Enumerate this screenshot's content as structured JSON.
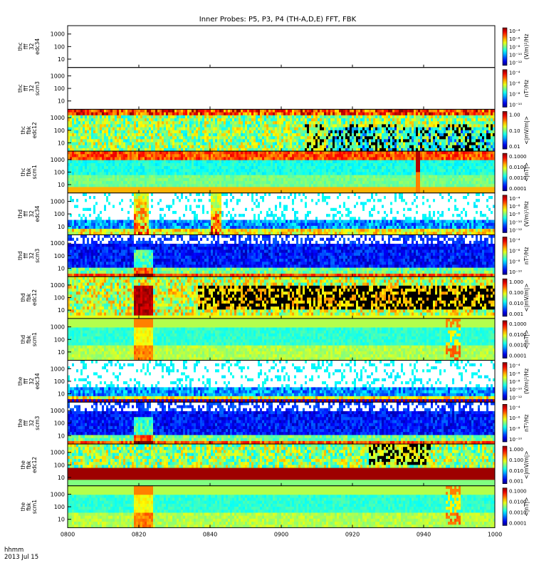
{
  "title": "Inner Probes: P5, P3, P4 (TH-A,D,E) FFT, FBK",
  "footer": {
    "format_label": "hhmm",
    "date_label": "2013 Jul 15"
  },
  "colorbar_units": {
    "ff_edc": "(V/m)²/Hz",
    "ff_scm": "nT²/Hz",
    "fbk_efi": "<|mV/m|>",
    "fbk_scm": "<|nT|>"
  },
  "chart_data": {
    "type": "heatmap",
    "title": "Inner Probes: P5, P3, P4 (TH-A,D,E) FFT, FBK",
    "x_ticks": [
      "0800",
      "0820",
      "0840",
      "0900",
      "0920",
      "0940",
      "1000"
    ],
    "x_range": [
      "08:00",
      "10:00"
    ],
    "y_scale": "log",
    "panels": [
      {
        "label": [
          "thc",
          "fff",
          "32",
          "edc34"
        ],
        "y_ticks": [
          "1000",
          "100",
          "10"
        ],
        "cbar_ticks": [
          "10⁻⁴",
          "10⁻⁶",
          "10⁻⁸",
          "10⁻¹⁰",
          "10⁻¹²"
        ],
        "units_key": "ff_edc",
        "empty": true
      },
      {
        "label": [
          "thc",
          "fff",
          "32",
          "scm3"
        ],
        "y_ticks": [
          "1000",
          "100",
          "10"
        ],
        "cbar_ticks": [
          "10⁻⁴",
          "10⁻⁶",
          "10⁻⁸",
          "10⁻¹⁰"
        ],
        "units_key": "ff_scm",
        "empty": true
      },
      {
        "label": [
          "thc",
          "fbk",
          "edc12"
        ],
        "y_ticks": [
          "1000",
          "100",
          "10"
        ],
        "cbar_ticks": [
          "1.00",
          "0.10",
          "0.01"
        ],
        "units_key": "fbk_efi",
        "pattern": "dense"
      },
      {
        "label": [
          "thc",
          "fbk",
          "scm1"
        ],
        "y_ticks": [
          "1000",
          "100",
          "10"
        ],
        "cbar_ticks": [
          "0.1000",
          "0.0100",
          "0.0010",
          "0.0001"
        ],
        "units_key": "fbk_scm",
        "pattern": "banded"
      },
      {
        "label": [
          "thd",
          "fff",
          "32",
          "edc34"
        ],
        "y_ticks": [
          "1000",
          "100",
          "10"
        ],
        "cbar_ticks": [
          "10⁻⁴",
          "10⁻⁶",
          "10⁻⁸",
          "10⁻¹⁰",
          "10⁻¹²"
        ],
        "units_key": "ff_edc",
        "pattern": "sparse"
      },
      {
        "label": [
          "thd",
          "fff",
          "32",
          "scm3"
        ],
        "y_ticks": [
          "1000",
          "100",
          "10"
        ],
        "cbar_ticks": [
          "10⁻⁴",
          "10⁻⁶",
          "10⁻⁸",
          "10⁻¹⁰"
        ],
        "units_key": "ff_scm",
        "pattern": "purple"
      },
      {
        "label": [
          "thd",
          "fbk",
          "edc12"
        ],
        "y_ticks": [
          "1000",
          "100",
          "10"
        ],
        "cbar_ticks": [
          "1.000",
          "0.100",
          "0.010",
          "0.001"
        ],
        "units_key": "fbk_efi",
        "pattern": "dark"
      },
      {
        "label": [
          "thd",
          "fbk",
          "scm1"
        ],
        "y_ticks": [
          "1000",
          "100",
          "10"
        ],
        "cbar_ticks": [
          "0.1000",
          "0.0100",
          "0.0010",
          "0.0001"
        ],
        "units_key": "fbk_scm",
        "pattern": "smooth"
      },
      {
        "label": [
          "the",
          "fff",
          "32",
          "edc34"
        ],
        "y_ticks": [
          "1000",
          "100",
          "10"
        ],
        "cbar_ticks": [
          "10⁻⁴",
          "10⁻⁶",
          "10⁻⁸",
          "10⁻¹⁰",
          "10⁻¹²"
        ],
        "units_key": "ff_edc",
        "pattern": "sparse2"
      },
      {
        "label": [
          "the",
          "fff",
          "32",
          "scm3"
        ],
        "y_ticks": [
          "1000",
          "100",
          "10"
        ],
        "cbar_ticks": [
          "10⁻⁴",
          "10⁻⁶",
          "10⁻⁸",
          "10⁻¹⁰"
        ],
        "units_key": "ff_scm",
        "pattern": "purple"
      },
      {
        "label": [
          "the",
          "fbk",
          "edc12"
        ],
        "y_ticks": [
          "1000",
          "100",
          "10"
        ],
        "cbar_ticks": [
          "1.000",
          "0.100",
          "0.010",
          "0.001"
        ],
        "units_key": "fbk_efi",
        "pattern": "redband"
      },
      {
        "label": [
          "the",
          "fbk",
          "scm1"
        ],
        "y_ticks": [
          "1000",
          "100",
          "10"
        ],
        "cbar_ticks": [
          "0.1000",
          "0.0100",
          "0.0010",
          "0.0001"
        ],
        "units_key": "fbk_scm",
        "pattern": "smooth"
      }
    ]
  }
}
